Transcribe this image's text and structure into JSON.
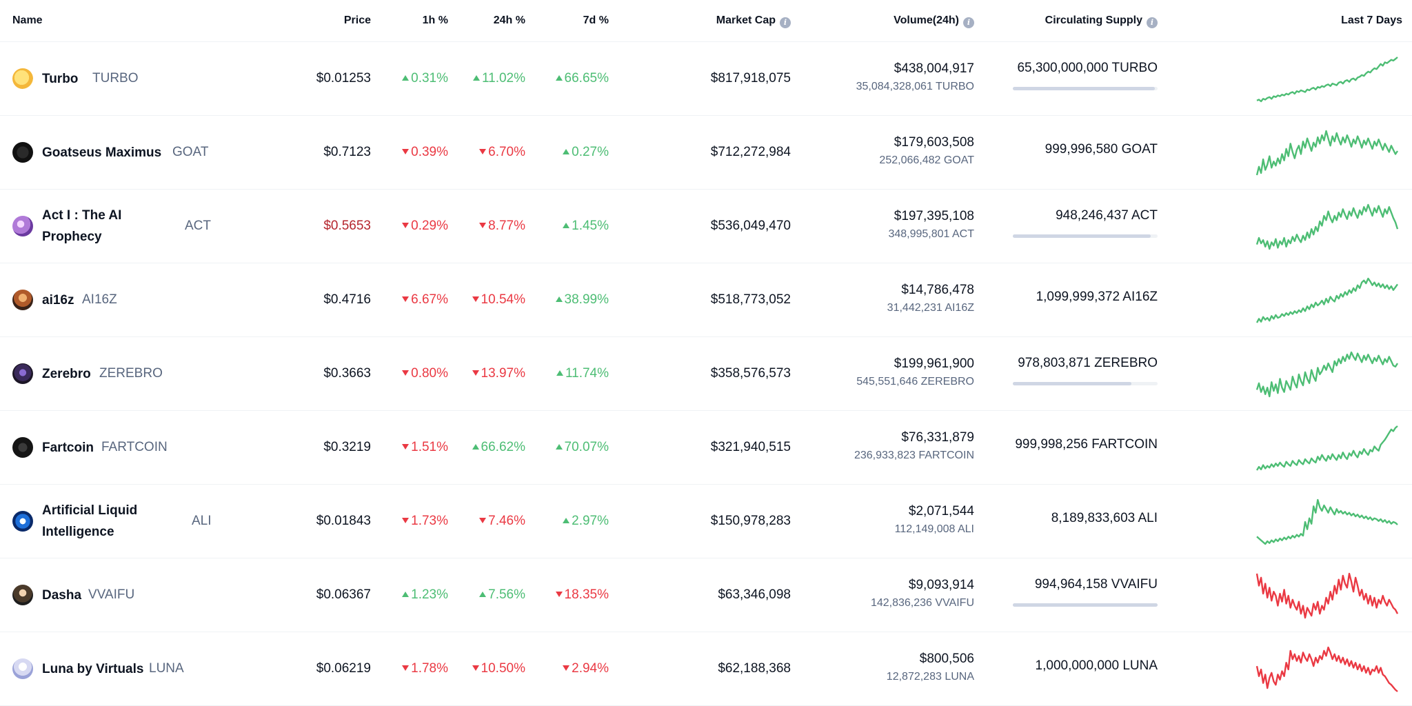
{
  "header": {
    "name": "Name",
    "price": "Price",
    "h1": "1h %",
    "h24": "24h %",
    "d7": "7d %",
    "market_cap": "Market Cap",
    "volume": "Volume(24h)",
    "supply": "Circulating Supply",
    "last7": "Last 7 Days"
  },
  "colors": {
    "up": "#4dbd74",
    "down": "#ea3943",
    "spark_up": "#4dbd74",
    "spark_down": "#ea3943"
  },
  "rows": [
    {
      "name": "Turbo",
      "symbol": "TURBO",
      "logo": "turbo-logo",
      "price": "$0.01253",
      "price_color": "default",
      "h1": "0.31%",
      "h1_dir": "up",
      "h24": "11.02%",
      "h24_dir": "up",
      "d7": "66.65%",
      "d7_dir": "up",
      "market_cap": "$817,918,075",
      "volume": "$438,004,917",
      "volume_sub": "35,084,328,061 TURBO",
      "supply": "65,300,000,000 TURBO",
      "supply_fill": 0.98,
      "spark_dir": "up",
      "spark": [
        12,
        13,
        11,
        14,
        13,
        15,
        16,
        14,
        17,
        16,
        18,
        17,
        19,
        18,
        20,
        19,
        21,
        22,
        20,
        23,
        22,
        24,
        23,
        22,
        25,
        24,
        26,
        27,
        25,
        28,
        27,
        29,
        28,
        30,
        31,
        29,
        32,
        31,
        30,
        33,
        34,
        32,
        35,
        36,
        34,
        37,
        38,
        36,
        39,
        40,
        42,
        41,
        44,
        46,
        45,
        48,
        50,
        49,
        52,
        55,
        53,
        57,
        56,
        58,
        60,
        59,
        61,
        63
      ]
    },
    {
      "name": "Goatseus Maximus",
      "symbol": "GOAT",
      "logo": "goat-logo",
      "price": "$0.7123",
      "price_color": "default",
      "h1": "0.39%",
      "h1_dir": "down",
      "h24": "6.70%",
      "h24_dir": "down",
      "d7": "0.27%",
      "d7_dir": "up",
      "market_cap": "$712,272,984",
      "volume": "$179,603,508",
      "volume_sub": "252,066,482 GOAT",
      "supply": "999,996,580 GOAT",
      "supply_fill": 0,
      "spark_dir": "up",
      "spark": [
        20,
        28,
        22,
        35,
        25,
        30,
        38,
        27,
        33,
        29,
        36,
        31,
        40,
        34,
        45,
        38,
        50,
        42,
        36,
        44,
        48,
        40,
        52,
        46,
        55,
        49,
        43,
        51,
        47,
        56,
        50,
        58,
        53,
        62,
        55,
        48,
        57,
        52,
        60,
        54,
        49,
        56,
        51,
        58,
        53,
        47,
        54,
        50,
        57,
        52,
        46,
        53,
        49,
        55,
        50,
        45,
        52,
        48,
        54,
        49,
        44,
        50,
        46,
        42,
        48,
        44,
        40,
        43
      ]
    },
    {
      "name": "Act I : The AI Prophecy",
      "symbol": "ACT",
      "logo": "act-logo",
      "price": "$0.5653",
      "price_color": "down",
      "h1": "0.29%",
      "h1_dir": "down",
      "h24": "8.77%",
      "h24_dir": "down",
      "d7": "1.45%",
      "d7_dir": "up",
      "market_cap": "$536,049,470",
      "volume": "$197,395,108",
      "volume_sub": "348,995,801 ACT",
      "supply": "948,246,437 ACT",
      "supply_fill": 0.95,
      "spark_dir": "up",
      "spark": [
        24,
        30,
        25,
        28,
        22,
        27,
        20,
        26,
        23,
        29,
        21,
        27,
        24,
        30,
        22,
        28,
        25,
        31,
        27,
        33,
        29,
        26,
        32,
        28,
        35,
        30,
        38,
        33,
        40,
        36,
        45,
        41,
        50,
        46,
        54,
        48,
        44,
        50,
        46,
        53,
        49,
        56,
        51,
        47,
        54,
        50,
        57,
        52,
        48,
        55,
        51,
        58,
        54,
        60,
        55,
        50,
        57,
        53,
        59,
        54,
        49,
        56,
        52,
        58,
        53,
        48,
        44,
        38
      ]
    },
    {
      "name": "ai16z",
      "symbol": "AI16Z",
      "logo": "ai16z-logo",
      "price": "$0.4716",
      "price_color": "default",
      "h1": "6.67%",
      "h1_dir": "down",
      "h24": "10.54%",
      "h24_dir": "down",
      "d7": "38.99%",
      "d7_dir": "up",
      "market_cap": "$518,773,052",
      "volume": "$14,786,478",
      "volume_sub": "31,442,231 AI16Z",
      "supply": "1,099,999,372 AI16Z",
      "supply_fill": 0,
      "spark_dir": "up",
      "spark": [
        16,
        20,
        17,
        22,
        19,
        21,
        18,
        23,
        20,
        24,
        21,
        22,
        25,
        23,
        26,
        24,
        27,
        25,
        28,
        26,
        29,
        27,
        31,
        28,
        33,
        30,
        35,
        32,
        37,
        34,
        36,
        39,
        35,
        41,
        37,
        43,
        40,
        38,
        44,
        41,
        46,
        43,
        48,
        45,
        50,
        47,
        52,
        49,
        55,
        52,
        58,
        60,
        57,
        62,
        59,
        55,
        58,
        54,
        57,
        53,
        56,
        52,
        55,
        51,
        54,
        50,
        53,
        56
      ]
    },
    {
      "name": "Zerebro",
      "symbol": "ZEREBRO",
      "logo": "zerebro-logo",
      "price": "$0.3663",
      "price_color": "default",
      "h1": "0.80%",
      "h1_dir": "down",
      "h24": "13.97%",
      "h24_dir": "down",
      "d7": "11.74%",
      "d7_dir": "up",
      "market_cap": "$358,576,573",
      "volume": "$199,961,900",
      "volume_sub": "545,551,646 ZEREBRO",
      "supply": "978,803,871 ZEREBRO",
      "supply_fill": 0.82,
      "spark_dir": "up",
      "spark": [
        28,
        34,
        26,
        31,
        24,
        30,
        22,
        35,
        27,
        33,
        25,
        38,
        30,
        26,
        36,
        32,
        28,
        40,
        34,
        30,
        42,
        36,
        32,
        44,
        38,
        34,
        46,
        40,
        36,
        48,
        42,
        45,
        50,
        46,
        52,
        48,
        44,
        54,
        50,
        56,
        52,
        58,
        54,
        60,
        56,
        62,
        58,
        55,
        61,
        57,
        53,
        59,
        55,
        60,
        56,
        52,
        57,
        54,
        59,
        55,
        51,
        56,
        53,
        58,
        54,
        50,
        49,
        52
      ]
    },
    {
      "name": "Fartcoin",
      "symbol": "FARTCOIN",
      "logo": "fartcoin-logo",
      "price": "$0.3219",
      "price_color": "default",
      "h1": "1.51%",
      "h1_dir": "down",
      "h24": "66.62%",
      "h24_dir": "up",
      "d7": "70.07%",
      "d7_dir": "up",
      "market_cap": "$321,940,515",
      "volume": "$76,331,879",
      "volume_sub": "236,933,823 FARTCOIN",
      "supply": "999,998,256 FARTCOIN",
      "supply_fill": 0,
      "spark_dir": "up",
      "spark": [
        12,
        16,
        13,
        18,
        14,
        17,
        15,
        19,
        16,
        20,
        17,
        21,
        18,
        16,
        22,
        19,
        17,
        23,
        20,
        18,
        24,
        21,
        19,
        25,
        22,
        20,
        26,
        23,
        21,
        28,
        24,
        30,
        26,
        23,
        29,
        25,
        31,
        27,
        24,
        30,
        26,
        33,
        28,
        25,
        32,
        29,
        35,
        30,
        27,
        34,
        31,
        37,
        33,
        30,
        36,
        34,
        40,
        37,
        35,
        42,
        45,
        48,
        52,
        56,
        60,
        58,
        62,
        64
      ]
    },
    {
      "name": "Artificial Liquid Intelligence",
      "symbol": "ALI",
      "logo": "ali-logo",
      "price": "$0.01843",
      "price_color": "default",
      "h1": "1.73%",
      "h1_dir": "down",
      "h24": "7.46%",
      "h24_dir": "down",
      "d7": "2.97%",
      "d7_dir": "up",
      "market_cap": "$150,978,283",
      "volume": "$2,071,544",
      "volume_sub": "112,149,008 ALI",
      "supply": "8,189,833,603 ALI",
      "supply_fill": 0,
      "spark_dir": "up",
      "spark": [
        22,
        20,
        18,
        16,
        14,
        17,
        15,
        18,
        16,
        19,
        17,
        20,
        18,
        21,
        19,
        22,
        20,
        23,
        21,
        24,
        22,
        25,
        23,
        38,
        30,
        42,
        36,
        55,
        48,
        62,
        54,
        50,
        56,
        52,
        48,
        54,
        50,
        46,
        52,
        48,
        50,
        47,
        49,
        46,
        48,
        45,
        47,
        44,
        46,
        43,
        45,
        42,
        44,
        41,
        43,
        40,
        42,
        41,
        39,
        41,
        38,
        40,
        37,
        39,
        36,
        38,
        37,
        35
      ]
    },
    {
      "name": "Dasha",
      "symbol": "VVAIFU",
      "logo": "dasha-logo",
      "price": "$0.06367",
      "price_color": "default",
      "h1": "1.23%",
      "h1_dir": "up",
      "h24": "7.56%",
      "h24_dir": "up",
      "d7": "18.35%",
      "d7_dir": "down",
      "market_cap": "$63,346,098",
      "volume": "$9,093,914",
      "volume_sub": "142,836,236 VVAIFU",
      "supply": "994,964,158 VVAIFU",
      "supply_fill": 1.0,
      "spark_dir": "down",
      "spark": [
        62,
        50,
        58,
        42,
        52,
        38,
        48,
        35,
        44,
        40,
        30,
        42,
        34,
        46,
        32,
        40,
        28,
        36,
        30,
        26,
        34,
        22,
        30,
        18,
        28,
        24,
        20,
        32,
        26,
        34,
        22,
        30,
        26,
        38,
        32,
        44,
        36,
        50,
        42,
        56,
        46,
        60,
        52,
        48,
        62,
        54,
        44,
        58,
        50,
        40,
        46,
        36,
        42,
        32,
        40,
        30,
        38,
        28,
        36,
        32,
        40,
        34,
        30,
        36,
        32,
        28,
        26,
        22
      ]
    },
    {
      "name": "Luna by Virtuals",
      "symbol": "LUNA",
      "logo": "luna-logo",
      "price": "$0.06219",
      "price_color": "default",
      "h1": "1.78%",
      "h1_dir": "down",
      "h24": "10.50%",
      "h24_dir": "down",
      "d7": "2.94%",
      "d7_dir": "down",
      "market_cap": "$62,188,368",
      "volume": "$800,506",
      "volume_sub": "12,872,283 LUNA",
      "supply": "1,000,000,000 LUNA",
      "supply_fill": 0,
      "spark_dir": "down",
      "spark": [
        40,
        28,
        36,
        20,
        30,
        14,
        26,
        32,
        22,
        18,
        30,
        24,
        34,
        28,
        44,
        36,
        58,
        48,
        54,
        46,
        52,
        44,
        56,
        50,
        46,
        54,
        48,
        40,
        50,
        44,
        52,
        48,
        58,
        52,
        62,
        56,
        48,
        54,
        46,
        52,
        44,
        50,
        42,
        48,
        40,
        46,
        38,
        44,
        36,
        42,
        34,
        40,
        32,
        38,
        30,
        36,
        34,
        40,
        32,
        38,
        30,
        28,
        24,
        20,
        18,
        15,
        12,
        10
      ]
    }
  ]
}
